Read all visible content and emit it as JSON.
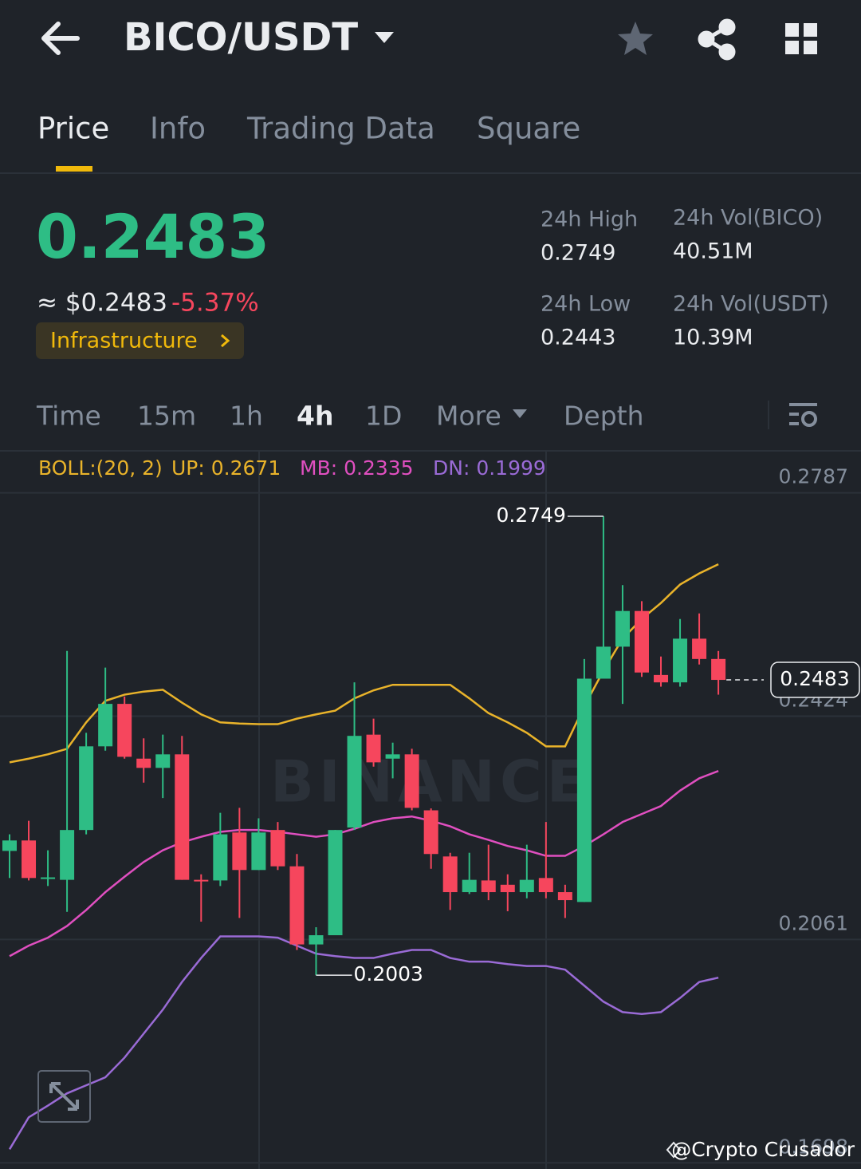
{
  "header": {
    "title": "BICO/USDT"
  },
  "tabs": [
    "Price",
    "Info",
    "Trading Data",
    "Square"
  ],
  "ticker": {
    "price": "0.2483",
    "usd_price": "≈ $0.2483",
    "change": "-5.37%",
    "tag": "Infrastructure",
    "stats": [
      {
        "label": "24h High",
        "value": "0.2749"
      },
      {
        "label": "24h Vol(BICO)",
        "value": "40.51M"
      },
      {
        "label": "24h Low",
        "value": "0.2443"
      },
      {
        "label": "24h Vol(USDT)",
        "value": "10.39M"
      }
    ]
  },
  "intervals": [
    "Time",
    "15m",
    "1h",
    "4h",
    "1D",
    "More",
    "Depth"
  ],
  "chart_data": {
    "type": "candlestick",
    "indicator": "BOLL:(20, 2)",
    "watermark": "BINANCE",
    "ylim": [
      0.1688,
      0.2854
    ],
    "yticks": [
      0.2787,
      0.2424,
      0.2061,
      0.1698
    ],
    "grid": true,
    "up_color": "#2ebd85",
    "down_color": "#f6465d",
    "open": [
      0.2205,
      0.2222,
      0.2161,
      0.2158,
      0.2239,
      0.2375,
      0.2444,
      0.2355,
      0.234,
      0.2362,
      0.2158,
      0.2157,
      0.2235,
      0.2174,
      0.2239,
      0.218,
      0.2053,
      0.2068,
      0.2243,
      0.2394,
      0.2355,
      0.2362,
      0.2271,
      0.2196,
      0.2138,
      0.2157,
      0.215,
      0.2138,
      0.2161,
      0.2138,
      0.2122,
      0.2485,
      0.2537,
      0.2595,
      0.2491,
      0.2479,
      0.255,
      0.2517
    ],
    "high": [
      0.2232,
      0.2254,
      0.2206,
      0.253,
      0.2397,
      0.2503,
      0.2456,
      0.2388,
      0.2394,
      0.2392,
      0.2167,
      0.2267,
      0.2275,
      0.2258,
      0.2252,
      0.22,
      0.2081,
      0.2239,
      0.2479,
      0.242,
      0.2381,
      0.2371,
      0.2274,
      0.2202,
      0.2202,
      0.2215,
      0.2167,
      0.2215,
      0.2252,
      0.215,
      0.2517,
      0.2749,
      0.2637,
      0.2611,
      0.2521,
      0.2582,
      0.2591,
      0.253
    ],
    "low": [
      0.2161,
      0.2157,
      0.2148,
      0.2106,
      0.2232,
      0.2368,
      0.2355,
      0.2316,
      0.2291,
      0.2158,
      0.209,
      0.2148,
      0.2096,
      0.2174,
      0.2174,
      0.2044,
      0.2003,
      0.2068,
      0.2239,
      0.2342,
      0.2323,
      0.2271,
      0.2176,
      0.2109,
      0.2135,
      0.2125,
      0.2107,
      0.2128,
      0.2128,
      0.2096,
      0.2122,
      0.2485,
      0.2444,
      0.2488,
      0.2472,
      0.2472,
      0.2508,
      0.2459
    ],
    "close": [
      0.2222,
      0.2161,
      0.2162,
      0.2239,
      0.2375,
      0.2444,
      0.2358,
      0.234,
      0.2362,
      0.2158,
      0.2157,
      0.2232,
      0.2174,
      0.2235,
      0.218,
      0.2053,
      0.2068,
      0.2239,
      0.2392,
      0.2349,
      0.2362,
      0.2275,
      0.22,
      0.2138,
      0.2158,
      0.2138,
      0.2138,
      0.2158,
      0.2138,
      0.2125,
      0.2485,
      0.2537,
      0.2595,
      0.2495,
      0.2479,
      0.255,
      0.2517,
      0.2483
    ],
    "series": [
      {
        "name": "UP: 0.2671",
        "color": "#e9b32a",
        "values": [
          0.2349,
          0.2355,
          0.2362,
          0.2371,
          0.2414,
          0.2449,
          0.2459,
          0.2464,
          0.2467,
          0.2446,
          0.2427,
          0.2414,
          0.2412,
          0.2411,
          0.2411,
          0.242,
          0.2427,
          0.2433,
          0.2453,
          0.2466,
          0.2475,
          0.2475,
          0.2475,
          0.2475,
          0.2453,
          0.2429,
          0.2414,
          0.2397,
          0.2375,
          0.2375,
          0.244,
          0.2498,
          0.255,
          0.2582,
          0.2608,
          0.2638,
          0.2656,
          0.2671
        ]
      },
      {
        "name": "MB: 0.2335",
        "color": "#e04fc0",
        "values": [
          0.2034,
          0.2051,
          0.2064,
          0.2083,
          0.2109,
          0.2138,
          0.2163,
          0.2187,
          0.2206,
          0.2219,
          0.2228,
          0.2236,
          0.2239,
          0.2239,
          0.2236,
          0.2232,
          0.2228,
          0.2232,
          0.2241,
          0.2252,
          0.2258,
          0.2261,
          0.2254,
          0.2245,
          0.2232,
          0.2223,
          0.2213,
          0.2206,
          0.2197,
          0.2197,
          0.2213,
          0.2232,
          0.2252,
          0.2265,
          0.2278,
          0.2303,
          0.2323,
          0.2335
        ]
      },
      {
        "name": "DN: 0.1999",
        "color": "#9a6bd6",
        "values": [
          0.172,
          0.1772,
          0.1791,
          0.1811,
          0.1824,
          0.1837,
          0.1869,
          0.1908,
          0.1947,
          0.1992,
          0.2031,
          0.2066,
          0.2066,
          0.2066,
          0.2064,
          0.2051,
          0.2038,
          0.2034,
          0.2031,
          0.2031,
          0.2038,
          0.2044,
          0.2044,
          0.2031,
          0.2025,
          0.2025,
          0.2021,
          0.2018,
          0.2018,
          0.2012,
          0.1986,
          0.196,
          0.1943,
          0.194,
          0.1943,
          0.1966,
          0.1992,
          0.1999
        ]
      }
    ],
    "high_label": "0.2749",
    "low_label": "0.2003",
    "last_price_label": "0.2483"
  },
  "credit": "@Crypto Crusador"
}
